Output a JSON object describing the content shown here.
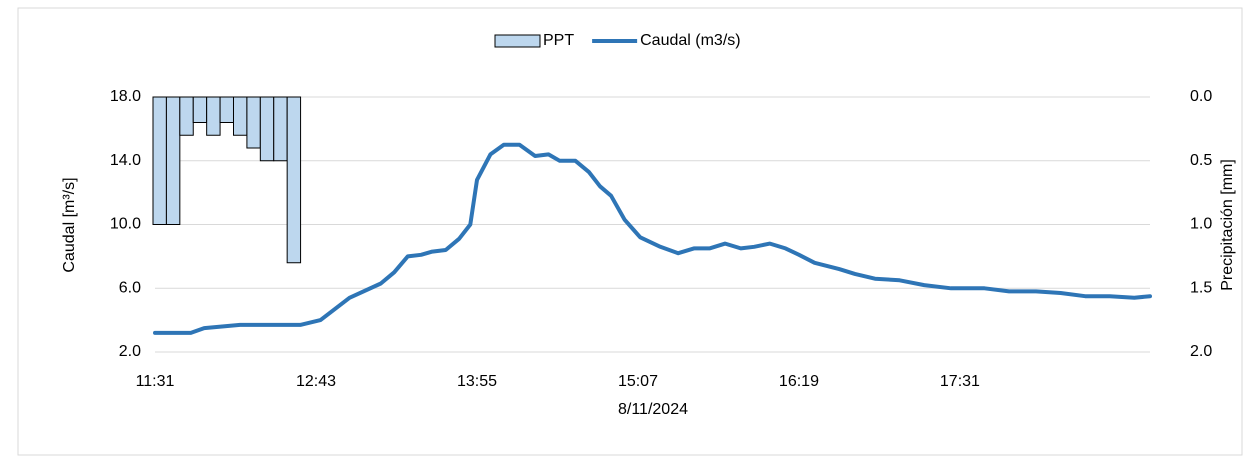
{
  "chart_data": {
    "type": "bar_line_dual",
    "xlabel": "8/11/2024",
    "ylabel": "Caudal [m³/s]",
    "y2label": "Precipitación [mm]",
    "xlim": [
      "11:31",
      "18:56"
    ],
    "xticks": [
      "11:31",
      "12:43",
      "13:55",
      "15:07",
      "16:19",
      "17:31"
    ],
    "ylim": [
      2,
      18
    ],
    "yticks": [
      {
        "value": 2,
        "label": "2.0"
      },
      {
        "value": 6,
        "label": "6.0"
      },
      {
        "value": 10,
        "label": "10.0"
      },
      {
        "value": 14,
        "label": "14.0"
      },
      {
        "value": 18,
        "label": "18.0"
      }
    ],
    "y2lim": [
      2,
      0
    ],
    "y2ticks": [
      {
        "value": 0,
        "label": "0.0"
      },
      {
        "value": 0.5,
        "label": "0.5"
      },
      {
        "value": 1,
        "label": "1.0"
      },
      {
        "value": 1.5,
        "label": "1.5"
      },
      {
        "value": 2,
        "label": "2.0"
      }
    ],
    "grid": true,
    "legend": "top",
    "series": [
      {
        "name": "PPT",
        "type": "bar",
        "axis": "y2",
        "color": "#bdd7ee",
        "x": [
          "11:31",
          "11:37",
          "11:43",
          "11:49",
          "11:55",
          "12:01",
          "12:07",
          "12:13",
          "12:19",
          "12:25",
          "12:31"
        ],
        "values": [
          1.0,
          1.0,
          0.3,
          0.2,
          0.3,
          0.2,
          0.3,
          0.4,
          0.5,
          0.5,
          1.3
        ]
      },
      {
        "name": "Caudal (m3/s)",
        "type": "line",
        "color": "#2e75b6",
        "x": [
          "11:31",
          "11:47",
          "11:53",
          "12:09",
          "12:36",
          "12:45",
          "12:58",
          "13:12",
          "13:18",
          "13:24",
          "13:30",
          "13:35",
          "13:41",
          "13:47",
          "13:52",
          "13:55",
          "14:01",
          "14:07",
          "14:14",
          "14:21",
          "14:27",
          "14:32",
          "14:39",
          "14:45",
          "14:50",
          "14:55",
          "15:01",
          "15:08",
          "15:17",
          "15:25",
          "15:32",
          "15:39",
          "15:46",
          "15:53",
          "15:59",
          "16:06",
          "16:13",
          "16:19",
          "16:26",
          "16:37",
          "16:44",
          "16:53",
          "17:04",
          "17:15",
          "17:27",
          "17:42",
          "17:53",
          "18:05",
          "18:16",
          "18:27",
          "18:38",
          "18:49",
          "18:56"
        ],
        "values": [
          3.2,
          3.2,
          3.5,
          3.7,
          3.7,
          4.0,
          5.4,
          6.3,
          7.0,
          8.0,
          8.1,
          8.3,
          8.4,
          9.1,
          10.0,
          12.8,
          14.4,
          15.0,
          15.0,
          14.3,
          14.4,
          14.0,
          14.0,
          13.3,
          12.4,
          11.8,
          10.3,
          9.2,
          8.6,
          8.2,
          8.5,
          8.5,
          8.8,
          8.5,
          8.6,
          8.8,
          8.5,
          8.1,
          7.6,
          7.2,
          6.9,
          6.6,
          6.5,
          6.2,
          6.0,
          6.0,
          5.8,
          5.8,
          5.7,
          5.5,
          5.5,
          5.4,
          5.5
        ]
      }
    ]
  }
}
